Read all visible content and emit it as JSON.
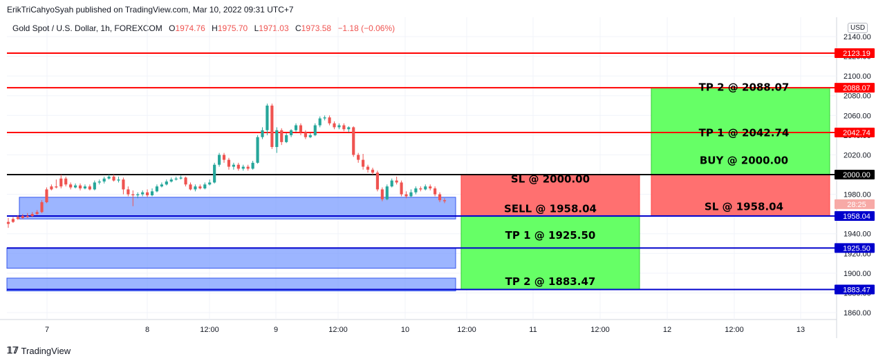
{
  "header": {
    "publisher": "ErikTriCahyoSyah published on TradingView.com, Mar 10, 2022 09:31 UTC+7",
    "symbol": "Gold Spot / U.S. Dollar, 1h, FOREXCOM",
    "o_label": "O",
    "o_value": "1974.76",
    "h_label": "H",
    "h_value": "1975.70",
    "l_label": "L",
    "l_value": "1971.03",
    "c_label": "C",
    "c_value": "1973.58",
    "change": "−1.18 (−0.06%)"
  },
  "currency_button": "USD",
  "brand": {
    "name": "TradingView"
  },
  "colors": {
    "up": "#26a69a",
    "down": "#ef5350",
    "level_red": "#ff0000",
    "level_blue": "#0000cc",
    "zone_blue": "#7b9cff",
    "target_green": "#66ff66",
    "stop_red": "#ff7070"
  },
  "chart_data": {
    "type": "candlestick",
    "ylim": [
      1848,
      2146
    ],
    "y_ticks": [
      "2140.00",
      "2120.00",
      "2100.00",
      "2080.00",
      "2060.00",
      "2040.00",
      "2020.00",
      "2000.00",
      "1980.00",
      "1960.00",
      "1940.00",
      "1920.00",
      "1900.00",
      "1880.00",
      "1860.00"
    ],
    "x_ticks": [
      "7",
      "8",
      "12:00",
      "9",
      "12:00",
      "10",
      "12:00",
      "11",
      "12:00",
      "12",
      "12:00",
      "13"
    ],
    "price_levels": [
      {
        "label": "2123.19",
        "value": 2123.19,
        "color": "red"
      },
      {
        "label": "2088.07",
        "value": 2088.07,
        "color": "red"
      },
      {
        "label": "2042.74",
        "value": 2042.74,
        "color": "red"
      },
      {
        "label": "2000.00",
        "value": 2000.0,
        "color": "black"
      },
      {
        "label": "1958.04",
        "value": 1958.04,
        "color": "blue"
      },
      {
        "label": "1925.50",
        "value": 1925.5,
        "color": "blue"
      },
      {
        "label": "1883.47",
        "value": 1883.47,
        "color": "blue"
      }
    ],
    "current_price_tag": "28:25",
    "annotations": {
      "sell_sl": "SL @ 2000.00",
      "sell_entry": "SELL @ 1958.04",
      "sell_tp1": "TP 1 @ 1925.50",
      "sell_tp2": "TP 2 @ 1883.47",
      "buy_tp2": "TP 2 @ 2088.07",
      "buy_tp1": "TP 1 @ 2042.74",
      "buy_entry": "BUY @ 2000.00",
      "buy_sl": "SL @ 1958.04"
    },
    "candles": [
      [
        1952,
        1950,
        1956,
        1946
      ],
      [
        1955,
        1952,
        1957,
        1951
      ],
      [
        1957,
        1955,
        1959,
        1954
      ],
      [
        1958,
        1956,
        1960,
        1955
      ],
      [
        1958,
        1957,
        1961,
        1956
      ],
      [
        1960,
        1958,
        1962,
        1957
      ],
      [
        1962,
        1960,
        1964,
        1959
      ],
      [
        1972,
        1962,
        1974,
        1961
      ],
      [
        1985,
        1972,
        1987,
        1971
      ],
      [
        1988,
        1985,
        1990,
        1984
      ],
      [
        1988,
        1987,
        1995,
        1986
      ],
      [
        1996,
        1988,
        2000,
        1986
      ],
      [
        1996,
        1990,
        1998,
        1988
      ],
      [
        1990,
        1987,
        1992,
        1985
      ],
      [
        1987,
        1989,
        1991,
        1986
      ],
      [
        1989,
        1986,
        1991,
        1984
      ],
      [
        1986,
        1988,
        1990,
        1985
      ],
      [
        1988,
        1985,
        1990,
        1984
      ],
      [
        1985,
        1992,
        1994,
        1984
      ],
      [
        1992,
        1993,
        1995,
        1990
      ],
      [
        1993,
        1996,
        1998,
        1991
      ],
      [
        1996,
        1998,
        2000,
        1995
      ],
      [
        1998,
        1994,
        2000,
        1993
      ],
      [
        1994,
        1995,
        1998,
        1992
      ],
      [
        1995,
        1985,
        1997,
        1980
      ],
      [
        1985,
        1980,
        1988,
        1978
      ],
      [
        1980,
        1979,
        1984,
        1968
      ],
      [
        1979,
        1980,
        1982,
        1976
      ],
      [
        1980,
        1982,
        1984,
        1978
      ],
      [
        1982,
        1979,
        1985,
        1977
      ],
      [
        1979,
        1983,
        1986,
        1978
      ],
      [
        1983,
        1988,
        1990,
        1982
      ],
      [
        1988,
        1990,
        1992,
        1987
      ],
      [
        1990,
        1993,
        1995,
        1989
      ],
      [
        1993,
        1995,
        1997,
        1992
      ],
      [
        1995,
        1996,
        1998,
        1994
      ],
      [
        1996,
        1997,
        1999,
        1995
      ],
      [
        1997,
        1990,
        1998,
        1988
      ],
      [
        1990,
        1985,
        1992,
        1984
      ],
      [
        1985,
        1988,
        1990,
        1983
      ],
      [
        1988,
        1986,
        1990,
        1985
      ],
      [
        1986,
        1990,
        1992,
        1985
      ],
      [
        1990,
        1992,
        1995,
        1989
      ],
      [
        1992,
        2010,
        2012,
        1991
      ],
      [
        2010,
        2020,
        2022,
        2008
      ],
      [
        2020,
        2015,
        2022,
        2012
      ],
      [
        2015,
        2008,
        2017,
        2005
      ],
      [
        2008,
        2010,
        2012,
        2005
      ],
      [
        2010,
        2006,
        2012,
        2004
      ],
      [
        2006,
        2008,
        2010,
        2004
      ],
      [
        2008,
        2006,
        2010,
        2004
      ],
      [
        2006,
        2012,
        2014,
        2005
      ],
      [
        2012,
        2038,
        2040,
        2011
      ],
      [
        2038,
        2045,
        2048,
        2036
      ],
      [
        2045,
        2070,
        2072,
        2040
      ],
      [
        2070,
        2028,
        2072,
        2026
      ],
      [
        2028,
        2045,
        2048,
        2022
      ],
      [
        2045,
        2033,
        2047,
        2030
      ],
      [
        2033,
        2040,
        2042,
        2032
      ],
      [
        2040,
        2045,
        2046,
        2038
      ],
      [
        2045,
        2050,
        2052,
        2043
      ],
      [
        2050,
        2043,
        2052,
        2040
      ],
      [
        2043,
        2038,
        2045,
        2036
      ],
      [
        2038,
        2040,
        2042,
        2037
      ],
      [
        2040,
        2050,
        2052,
        2039
      ],
      [
        2050,
        2057,
        2059,
        2048
      ],
      [
        2057,
        2058,
        2060,
        2055
      ],
      [
        2058,
        2052,
        2060,
        2050
      ],
      [
        2052,
        2048,
        2054,
        2046
      ],
      [
        2048,
        2050,
        2052,
        2046
      ],
      [
        2050,
        2046,
        2052,
        2044
      ],
      [
        2046,
        2048,
        2049,
        2043
      ],
      [
        2048,
        2020,
        2049,
        2018
      ],
      [
        2020,
        2015,
        2022,
        2012
      ],
      [
        2015,
        2008,
        2021,
        2005
      ],
      [
        2008,
        2005,
        2010,
        2002
      ],
      [
        2005,
        2002,
        2007,
        2000
      ],
      [
        2002,
        1985,
        2004,
        1983
      ],
      [
        1985,
        1975,
        1987,
        1973
      ],
      [
        1975,
        1988,
        1990,
        1974
      ],
      [
        1988,
        1994,
        1996,
        1987
      ],
      [
        1994,
        1992,
        1998,
        1990
      ],
      [
        1992,
        1980,
        1994,
        1978
      ],
      [
        1980,
        1978,
        1983,
        1976
      ],
      [
        1978,
        1982,
        1985,
        1977
      ],
      [
        1982,
        1986,
        1988,
        1980
      ],
      [
        1986,
        1985,
        1988,
        1983
      ],
      [
        1985,
        1988,
        1990,
        1984
      ],
      [
        1988,
        1986,
        1990,
        1984
      ],
      [
        1986,
        1980,
        1988,
        1978
      ],
      [
        1980,
        1974,
        1982,
        1972
      ],
      [
        1974,
        1973,
        1976,
        1971
      ]
    ]
  }
}
